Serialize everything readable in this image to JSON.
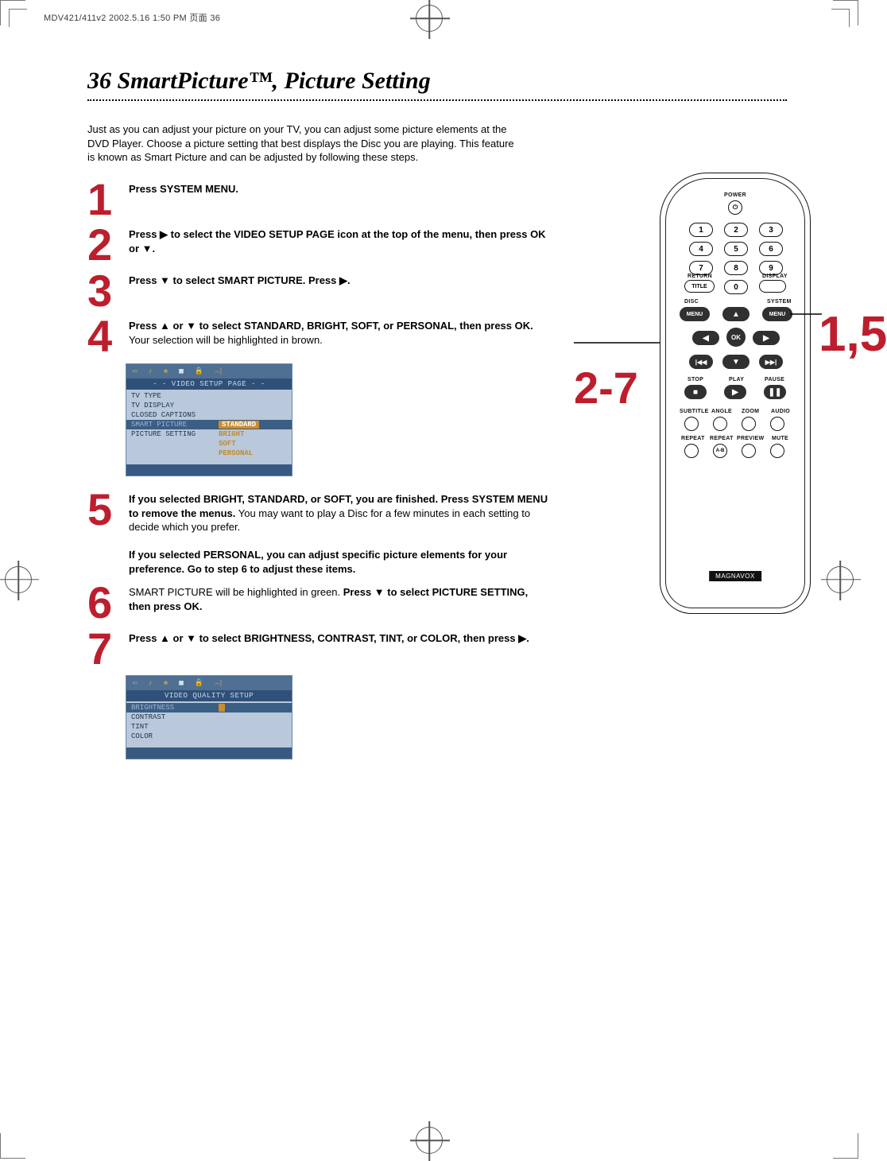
{
  "print_header": "MDV421/411v2  2002.5.16  1:50 PM  页面 36",
  "page_title": "36  SmartPicture™, Picture Setting",
  "intro": "Just as you can adjust your picture on your TV, you can adjust some picture elements at the DVD Player. Choose a picture setting that best displays the Disc you are playing. This feature is known as Smart Picture and can be adjusted by following these steps.",
  "steps": [
    {
      "num": "1",
      "body": "<b>Press SYSTEM MENU.</b>"
    },
    {
      "num": "2",
      "body": "<b>Press ▶ to select the VIDEO SETUP PAGE icon at the top of the menu, then press OK or ▼.</b>"
    },
    {
      "num": "3",
      "body": "<b>Press ▼ to select SMART PICTURE. Press ▶.</b>"
    },
    {
      "num": "4",
      "body": "<b>Press ▲ or ▼ to select STANDARD, BRIGHT,  SOFT, or PERSONAL, then press OK.</b> Your selection will be highlighted in brown."
    },
    {
      "num": "5",
      "body": "<b>If you selected BRIGHT, STANDARD, or SOFT, you are finished. Press SYSTEM MENU to remove the menus.</b> You may want to play a Disc for a few minutes in each setting to decide which you prefer.<br><br><b>If you selected PERSONAL, you can adjust specific picture elements for your preference. Go to step 6 to adjust these items.</b>"
    },
    {
      "num": "6",
      "body": "SMART PICTURE will be highlighted in green. <b>Press ▼ to select PICTURE SETTING, then press OK.</b>"
    },
    {
      "num": "7",
      "body": "<b>Press ▲ or ▼ to select BRIGHTNESS, CONTRAST, TINT, or COLOR, then press ▶.</b>"
    }
  ],
  "annot_27": "2-7",
  "annot_15": "1,5",
  "menu1": {
    "header": "- -  VIDEO SETUP PAGE  - -",
    "rows": [
      {
        "l": "TV TYPE",
        "r": ""
      },
      {
        "l": "TV DISPLAY",
        "r": ""
      },
      {
        "l": "CLOSED CAPTIONS",
        "r": ""
      },
      {
        "l": "SMART PICTURE",
        "r": "STANDARD",
        "sel": true
      },
      {
        "l": "PICTURE SETTING",
        "r": "BRIGHT"
      },
      {
        "l": "",
        "r": "SOFT"
      },
      {
        "l": "",
        "r": "PERSONAL"
      }
    ]
  },
  "menu2": {
    "header": "VIDEO QUALITY SETUP",
    "rows": [
      {
        "l": "BRIGHTNESS",
        "r": "",
        "sel": true
      },
      {
        "l": "CONTRAST",
        "r": ""
      },
      {
        "l": "TINT",
        "r": ""
      },
      {
        "l": "COLOR",
        "r": ""
      }
    ]
  },
  "remote": {
    "power": "POWER",
    "nums": [
      "1",
      "2",
      "3",
      "4",
      "5",
      "6",
      "7",
      "8",
      "9",
      "0"
    ],
    "return": "RETURN",
    "title": "TITLE",
    "display": "DISPLAY",
    "disc": "DISC",
    "system": "SYSTEM",
    "menu": "MENU",
    "ok": "OK",
    "stop": "STOP",
    "play": "PLAY",
    "pause": "PAUSE",
    "row1": [
      "SUBTITLE",
      "ANGLE",
      "ZOOM",
      "AUDIO"
    ],
    "row2": [
      "REPEAT",
      "REPEAT",
      "PREVIEW",
      "MUTE"
    ],
    "ab": "A-B",
    "brand": "MAGNAVOX"
  },
  "colors": {
    "accent_red": "#bd1e2d",
    "menu_header_bg": "#2f5079",
    "menu_body_bg": "#b9c8da",
    "menu_highlight": "#c98d2d"
  }
}
